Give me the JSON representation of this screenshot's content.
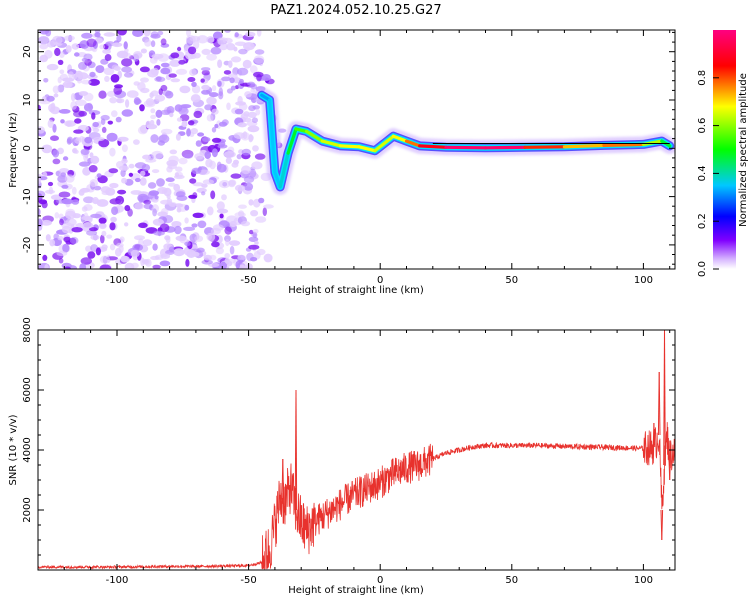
{
  "chart_data": [
    {
      "type": "heatmap",
      "title": "PAZ1.2024.052.10.25.G27",
      "xlabel": "Height of straight line (km)",
      "ylabel": "Frequency (Hz)",
      "xlim": [
        -130,
        112
      ],
      "ylim": [
        -25,
        24.5
      ],
      "xticks": [
        -100,
        -50,
        0,
        50,
        100
      ],
      "yticks": [
        -20,
        -10,
        0,
        10,
        20
      ],
      "colorbar": {
        "label": "Normalized spectral amplitude",
        "range": [
          0,
          1
        ],
        "ticks": [
          0.0,
          0.2,
          0.4,
          0.6,
          0.8
        ],
        "colors": [
          "#ffffff",
          "#8000ff",
          "#0000ff",
          "#00ffff",
          "#00ff00",
          "#ffff00",
          "#ff0000",
          "#ff0080"
        ]
      },
      "ridge": {
        "description_points": [
          {
            "x": -45,
            "y": 11,
            "amp": 0.35
          },
          {
            "x": -42,
            "y": 10,
            "amp": 0.3
          },
          {
            "x": -40,
            "y": -5,
            "amp": 0.4
          },
          {
            "x": -38,
            "y": -8,
            "amp": 0.3
          },
          {
            "x": -35,
            "y": -1,
            "amp": 0.45
          },
          {
            "x": -32,
            "y": 4,
            "amp": 0.5
          },
          {
            "x": -28,
            "y": 3.5,
            "amp": 0.6
          },
          {
            "x": -22,
            "y": 1.5,
            "amp": 0.6
          },
          {
            "x": -15,
            "y": 0.5,
            "amp": 0.7
          },
          {
            "x": -8,
            "y": 0.3,
            "amp": 0.65
          },
          {
            "x": -2,
            "y": -0.5,
            "amp": 0.7
          },
          {
            "x": 5,
            "y": 2.5,
            "amp": 0.6
          },
          {
            "x": 10,
            "y": 1.5,
            "amp": 0.75
          },
          {
            "x": 15,
            "y": 0.5,
            "amp": 0.8
          },
          {
            "x": 25,
            "y": 0.2,
            "amp": 0.95
          },
          {
            "x": 40,
            "y": 0.1,
            "amp": 1.0
          },
          {
            "x": 55,
            "y": 0.2,
            "amp": 0.95
          },
          {
            "x": 70,
            "y": 0.3,
            "amp": 0.7
          },
          {
            "x": 85,
            "y": 0.6,
            "amp": 0.75
          },
          {
            "x": 100,
            "y": 0.8,
            "amp": 0.8
          },
          {
            "x": 107,
            "y": 1.5,
            "amp": 0.45
          },
          {
            "x": 110,
            "y": 0.5,
            "amp": 0.5
          }
        ],
        "line_y": 1.0,
        "line_x_range": [
          20,
          110
        ]
      }
    },
    {
      "type": "line",
      "xlabel": "Height of straight line (km)",
      "ylabel": "SNR (10 * v/v)",
      "xlim": [
        -130,
        112
      ],
      "ylim": [
        0,
        8000
      ],
      "xticks": [
        -100,
        -50,
        0,
        50,
        100
      ],
      "yticks": [
        2000,
        4000,
        6000,
        8000
      ],
      "series": [
        {
          "color": "#e8322d",
          "x": [
            -130,
            -120,
            -110,
            -100,
            -90,
            -80,
            -70,
            -60,
            -50,
            -45,
            -42,
            -40,
            -38,
            -36,
            -34,
            -32,
            -30,
            -28,
            -25,
            -20,
            -15,
            -10,
            -5,
            0,
            5,
            10,
            15,
            20,
            25,
            30,
            35,
            40,
            50,
            60,
            70,
            80,
            90,
            100,
            104,
            106,
            107,
            108,
            109,
            110,
            112
          ],
          "y": [
            100,
            100,
            100,
            100,
            110,
            120,
            120,
            130,
            150,
            250,
            700,
            1500,
            2400,
            2300,
            2800,
            2000,
            1600,
            1300,
            1600,
            1900,
            2200,
            2500,
            2700,
            2900,
            3200,
            3400,
            3500,
            3700,
            3900,
            4000,
            4100,
            4150,
            4150,
            4150,
            4120,
            4100,
            4080,
            4050,
            4100,
            4500,
            2000,
            3500,
            4500,
            3800,
            4000
          ]
        }
      ],
      "spikes": [
        {
          "x": -37,
          "y": 3700
        },
        {
          "x": -32,
          "y": 6000
        },
        {
          "x": 104,
          "y": 4900
        },
        {
          "x": 106,
          "y": 6600
        },
        {
          "x": 108,
          "y": 8000
        },
        {
          "x": 107,
          "y": 1000
        },
        {
          "x": 110,
          "y": 3000
        }
      ]
    }
  ]
}
